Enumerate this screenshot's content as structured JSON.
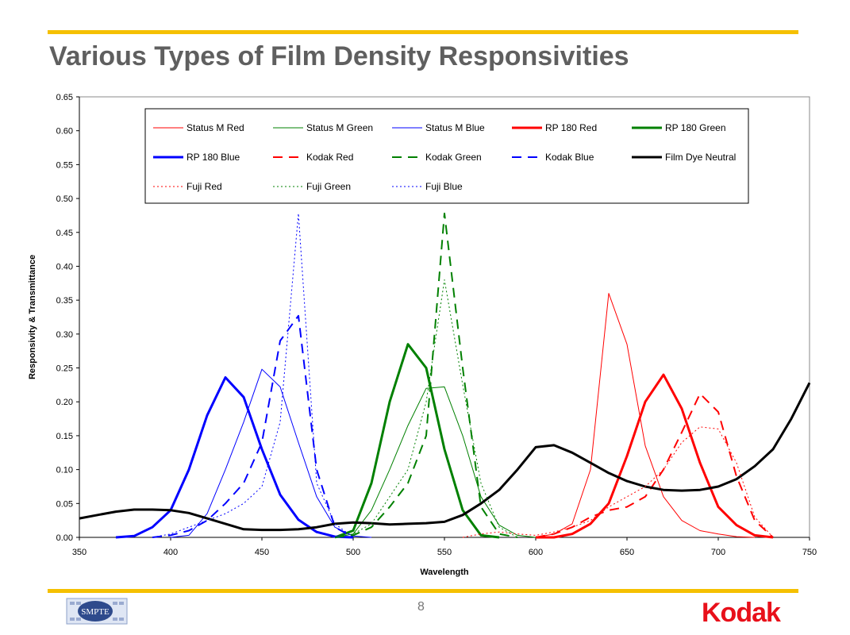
{
  "slide": {
    "title": "Various Types of Film Density Responsivities",
    "page_number": "8",
    "logo_left": "SMPTE",
    "logo_right": "Kodak"
  },
  "colors": {
    "accent_rule": "#f5c000",
    "kodak_red": "#e8101a",
    "title_gray": "#5f5f5f"
  },
  "chart_data": {
    "type": "line",
    "title": "",
    "xlabel": "Wavelength",
    "ylabel": "Responsivity & Transmittance",
    "xlim": [
      350,
      750
    ],
    "ylim": [
      0,
      0.65
    ],
    "xticks": [
      "350",
      "400",
      "450",
      "500",
      "550",
      "600",
      "650",
      "700",
      "750"
    ],
    "yticks": [
      "0.00",
      "0.05",
      "0.10",
      "0.15",
      "0.20",
      "0.25",
      "0.30",
      "0.35",
      "0.40",
      "0.45",
      "0.50",
      "0.55",
      "0.60",
      "0.65"
    ],
    "grid": false,
    "legend_position": "top",
    "series": [
      {
        "name": "Status M Red",
        "color": "#ff0000",
        "width": 1,
        "dash": "solid",
        "points": [
          [
            600,
            0
          ],
          [
            610,
            0.005
          ],
          [
            620,
            0.02
          ],
          [
            630,
            0.1
          ],
          [
            640,
            0.36
          ],
          [
            650,
            0.285
          ],
          [
            660,
            0.135
          ],
          [
            670,
            0.06
          ],
          [
            680,
            0.025
          ],
          [
            690,
            0.01
          ],
          [
            700,
            0.005
          ],
          [
            710,
            0.001
          ],
          [
            720,
            0
          ]
        ]
      },
      {
        "name": "Status M Green",
        "color": "#008000",
        "width": 1,
        "dash": "solid",
        "points": [
          [
            490,
            0
          ],
          [
            500,
            0.005
          ],
          [
            510,
            0.04
          ],
          [
            520,
            0.1
          ],
          [
            530,
            0.165
          ],
          [
            540,
            0.22
          ],
          [
            550,
            0.222
          ],
          [
            560,
            0.15
          ],
          [
            570,
            0.06
          ],
          [
            580,
            0.018
          ],
          [
            590,
            0.003
          ],
          [
            600,
            0
          ]
        ]
      },
      {
        "name": "Status M Blue",
        "color": "#0000ff",
        "width": 1,
        "dash": "solid",
        "points": [
          [
            400,
            0
          ],
          [
            410,
            0.003
          ],
          [
            420,
            0.035
          ],
          [
            430,
            0.1
          ],
          [
            440,
            0.17
          ],
          [
            450,
            0.248
          ],
          [
            460,
            0.222
          ],
          [
            470,
            0.14
          ],
          [
            480,
            0.06
          ],
          [
            490,
            0.015
          ],
          [
            500,
            0.002
          ],
          [
            510,
            0
          ]
        ]
      },
      {
        "name": "RP 180 Red",
        "color": "#ff0000",
        "width": 3,
        "dash": "solid",
        "points": [
          [
            600,
            0
          ],
          [
            610,
            0
          ],
          [
            620,
            0.005
          ],
          [
            630,
            0.02
          ],
          [
            640,
            0.05
          ],
          [
            650,
            0.12
          ],
          [
            660,
            0.2
          ],
          [
            670,
            0.24
          ],
          [
            680,
            0.19
          ],
          [
            690,
            0.11
          ],
          [
            700,
            0.045
          ],
          [
            710,
            0.018
          ],
          [
            720,
            0.003
          ],
          [
            730,
            0
          ]
        ]
      },
      {
        "name": "RP 180 Green",
        "color": "#008000",
        "width": 3,
        "dash": "solid",
        "points": [
          [
            490,
            0
          ],
          [
            500,
            0.01
          ],
          [
            510,
            0.08
          ],
          [
            520,
            0.2
          ],
          [
            530,
            0.285
          ],
          [
            540,
            0.25
          ],
          [
            550,
            0.13
          ],
          [
            560,
            0.04
          ],
          [
            570,
            0.003
          ],
          [
            580,
            0
          ]
        ]
      },
      {
        "name": "RP 180 Blue",
        "color": "#0000ff",
        "width": 3,
        "dash": "solid",
        "points": [
          [
            370,
            0
          ],
          [
            380,
            0.002
          ],
          [
            390,
            0.015
          ],
          [
            400,
            0.04
          ],
          [
            410,
            0.1
          ],
          [
            420,
            0.18
          ],
          [
            430,
            0.236
          ],
          [
            440,
            0.207
          ],
          [
            450,
            0.13
          ],
          [
            460,
            0.063
          ],
          [
            470,
            0.026
          ],
          [
            480,
            0.008
          ],
          [
            490,
            0.001
          ],
          [
            500,
            0
          ]
        ]
      },
      {
        "name": "Kodak Red",
        "color": "#ff0000",
        "width": 2,
        "dash": "12 8",
        "points": [
          [
            600,
            0
          ],
          [
            610,
            0.005
          ],
          [
            620,
            0.015
          ],
          [
            630,
            0.03
          ],
          [
            640,
            0.04
          ],
          [
            650,
            0.045
          ],
          [
            660,
            0.06
          ],
          [
            670,
            0.1
          ],
          [
            680,
            0.155
          ],
          [
            690,
            0.212
          ],
          [
            700,
            0.185
          ],
          [
            710,
            0.09
          ],
          [
            720,
            0.025
          ],
          [
            730,
            0
          ]
        ]
      },
      {
        "name": "Kodak Green",
        "color": "#008000",
        "width": 2,
        "dash": "12 8",
        "points": [
          [
            490,
            0
          ],
          [
            500,
            0.003
          ],
          [
            510,
            0.015
          ],
          [
            520,
            0.045
          ],
          [
            530,
            0.08
          ],
          [
            540,
            0.15
          ],
          [
            550,
            0.478
          ],
          [
            560,
            0.25
          ],
          [
            570,
            0.045
          ],
          [
            580,
            0.005
          ],
          [
            590,
            0
          ]
        ]
      },
      {
        "name": "Kodak Blue",
        "color": "#0000ff",
        "width": 2,
        "dash": "12 8",
        "points": [
          [
            390,
            0
          ],
          [
            400,
            0.003
          ],
          [
            410,
            0.01
          ],
          [
            420,
            0.025
          ],
          [
            430,
            0.05
          ],
          [
            440,
            0.08
          ],
          [
            450,
            0.14
          ],
          [
            460,
            0.29
          ],
          [
            470,
            0.327
          ],
          [
            480,
            0.1
          ],
          [
            490,
            0.015
          ],
          [
            500,
            0
          ]
        ]
      },
      {
        "name": "Film Dye Neutral",
        "color": "#000000",
        "width": 3,
        "dash": "solid",
        "points": [
          [
            350,
            0.028
          ],
          [
            360,
            0.033
          ],
          [
            370,
            0.038
          ],
          [
            380,
            0.041
          ],
          [
            390,
            0.041
          ],
          [
            400,
            0.04
          ],
          [
            410,
            0.036
          ],
          [
            420,
            0.028
          ],
          [
            430,
            0.02
          ],
          [
            440,
            0.012
          ],
          [
            450,
            0.011
          ],
          [
            460,
            0.011
          ],
          [
            470,
            0.012
          ],
          [
            480,
            0.015
          ],
          [
            490,
            0.02
          ],
          [
            500,
            0.022
          ],
          [
            510,
            0.021
          ],
          [
            520,
            0.019
          ],
          [
            530,
            0.02
          ],
          [
            540,
            0.021
          ],
          [
            550,
            0.023
          ],
          [
            560,
            0.033
          ],
          [
            570,
            0.05
          ],
          [
            580,
            0.07
          ],
          [
            590,
            0.1
          ],
          [
            600,
            0.133
          ],
          [
            610,
            0.136
          ],
          [
            620,
            0.125
          ],
          [
            630,
            0.11
          ],
          [
            640,
            0.095
          ],
          [
            650,
            0.083
          ],
          [
            660,
            0.075
          ],
          [
            670,
            0.07
          ],
          [
            680,
            0.069
          ],
          [
            690,
            0.07
          ],
          [
            700,
            0.075
          ],
          [
            710,
            0.086
          ],
          [
            720,
            0.105
          ],
          [
            730,
            0.13
          ],
          [
            740,
            0.175
          ],
          [
            750,
            0.228
          ]
        ]
      },
      {
        "name": "Fuji Red",
        "color": "#ff0000",
        "width": 1,
        "dash": "2 3",
        "points": [
          [
            560,
            0
          ],
          [
            570,
            0.005
          ],
          [
            580,
            0.008
          ],
          [
            590,
            0.005
          ],
          [
            600,
            0.003
          ],
          [
            610,
            0.008
          ],
          [
            620,
            0.015
          ],
          [
            630,
            0.025
          ],
          [
            640,
            0.045
          ],
          [
            650,
            0.06
          ],
          [
            660,
            0.075
          ],
          [
            670,
            0.1
          ],
          [
            680,
            0.14
          ],
          [
            690,
            0.163
          ],
          [
            700,
            0.16
          ],
          [
            710,
            0.11
          ],
          [
            720,
            0.03
          ],
          [
            730,
            0
          ]
        ]
      },
      {
        "name": "Fuji Green",
        "color": "#008000",
        "width": 1,
        "dash": "2 3",
        "points": [
          [
            490,
            0
          ],
          [
            500,
            0.005
          ],
          [
            510,
            0.02
          ],
          [
            520,
            0.06
          ],
          [
            530,
            0.1
          ],
          [
            540,
            0.2
          ],
          [
            550,
            0.38
          ],
          [
            560,
            0.225
          ],
          [
            570,
            0.08
          ],
          [
            580,
            0.015
          ],
          [
            590,
            0
          ]
        ]
      },
      {
        "name": "Fuji Blue",
        "color": "#0000ff",
        "width": 1,
        "dash": "2 3",
        "points": [
          [
            390,
            0
          ],
          [
            400,
            0.005
          ],
          [
            410,
            0.015
          ],
          [
            420,
            0.025
          ],
          [
            430,
            0.035
          ],
          [
            440,
            0.05
          ],
          [
            450,
            0.075
          ],
          [
            460,
            0.17
          ],
          [
            470,
            0.478
          ],
          [
            480,
            0.08
          ],
          [
            490,
            0.02
          ],
          [
            500,
            0
          ]
        ]
      }
    ]
  }
}
